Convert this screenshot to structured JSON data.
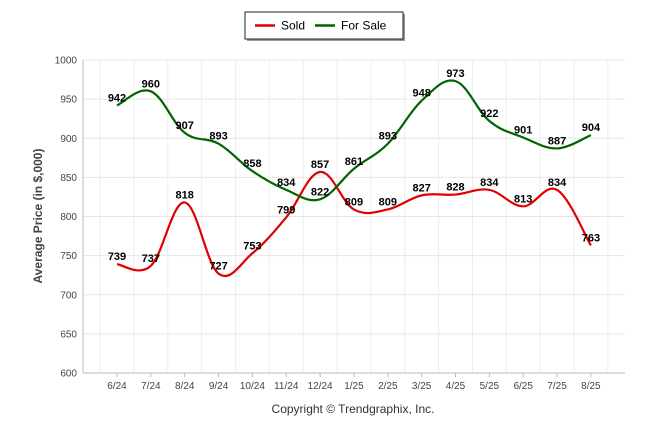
{
  "chart_data": {
    "type": "line",
    "categories": [
      "6/24",
      "7/24",
      "8/24",
      "9/24",
      "10/24",
      "11/24",
      "12/24",
      "1/25",
      "2/25",
      "3/25",
      "4/25",
      "5/25",
      "6/25",
      "7/25",
      "8/25"
    ],
    "series": [
      {
        "name": "Sold",
        "color": "#e00000",
        "values": [
          739,
          737,
          818,
          727,
          753,
          799,
          857,
          809,
          809,
          827,
          828,
          834,
          813,
          834,
          763
        ]
      },
      {
        "name": "For Sale",
        "color": "#006400",
        "values": [
          942,
          960,
          907,
          893,
          858,
          834,
          822,
          861,
          893,
          948,
          973,
          922,
          901,
          887,
          904
        ]
      }
    ],
    "ylabel": "Average Price (in $,000)",
    "xlabel": "",
    "ylim": [
      600,
      1000
    ],
    "yticks": [
      600,
      650,
      700,
      750,
      800,
      850,
      900,
      950,
      1000
    ],
    "grid": true,
    "legend": "top-center",
    "credit": "Copyright © Trendgraphix, Inc."
  }
}
